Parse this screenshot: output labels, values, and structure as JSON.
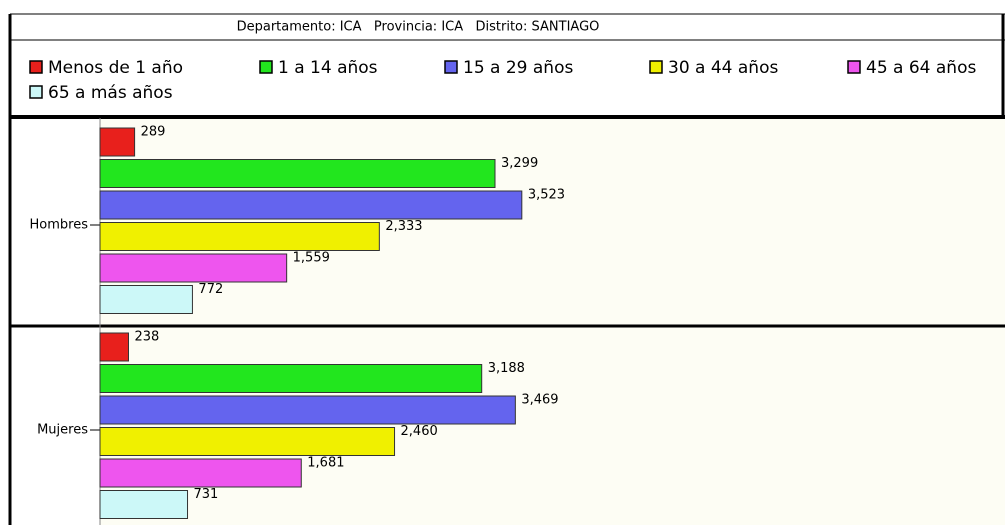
{
  "chart_data": {
    "type": "bar",
    "orientation": "horizontal",
    "title": "Departamento: ICA   Provincia: ICA   Distrito: SANTIAGO",
    "categories": [
      "Hombres",
      "Mujeres"
    ],
    "series": [
      {
        "name": "Menos de 1 año",
        "color": "#e8201c",
        "values": [
          289,
          238
        ],
        "value_labels": [
          "289",
          "238"
        ]
      },
      {
        "name": "1 a 14 años",
        "color": "#22e61e",
        "values": [
          3299,
          3188
        ],
        "value_labels": [
          "3,299",
          "3,188"
        ]
      },
      {
        "name": "15 a 29 años",
        "color": "#6464ee",
        "values": [
          3523,
          3469
        ],
        "value_labels": [
          "3,523",
          "3,469"
        ]
      },
      {
        "name": "30 a 44 años",
        "color": "#f0f000",
        "values": [
          2333,
          2460
        ],
        "value_labels": [
          "2,333",
          "2,460"
        ]
      },
      {
        "name": "45 a 64 años",
        "color": "#ee55ee",
        "values": [
          1559,
          1681
        ],
        "value_labels": [
          "1,559",
          "1,681"
        ]
      },
      {
        "name": "65 a más años",
        "color": "#ccf8f8",
        "values": [
          772,
          731
        ],
        "value_labels": [
          "772",
          "731"
        ]
      }
    ],
    "xlim": [
      0,
      7500
    ]
  }
}
